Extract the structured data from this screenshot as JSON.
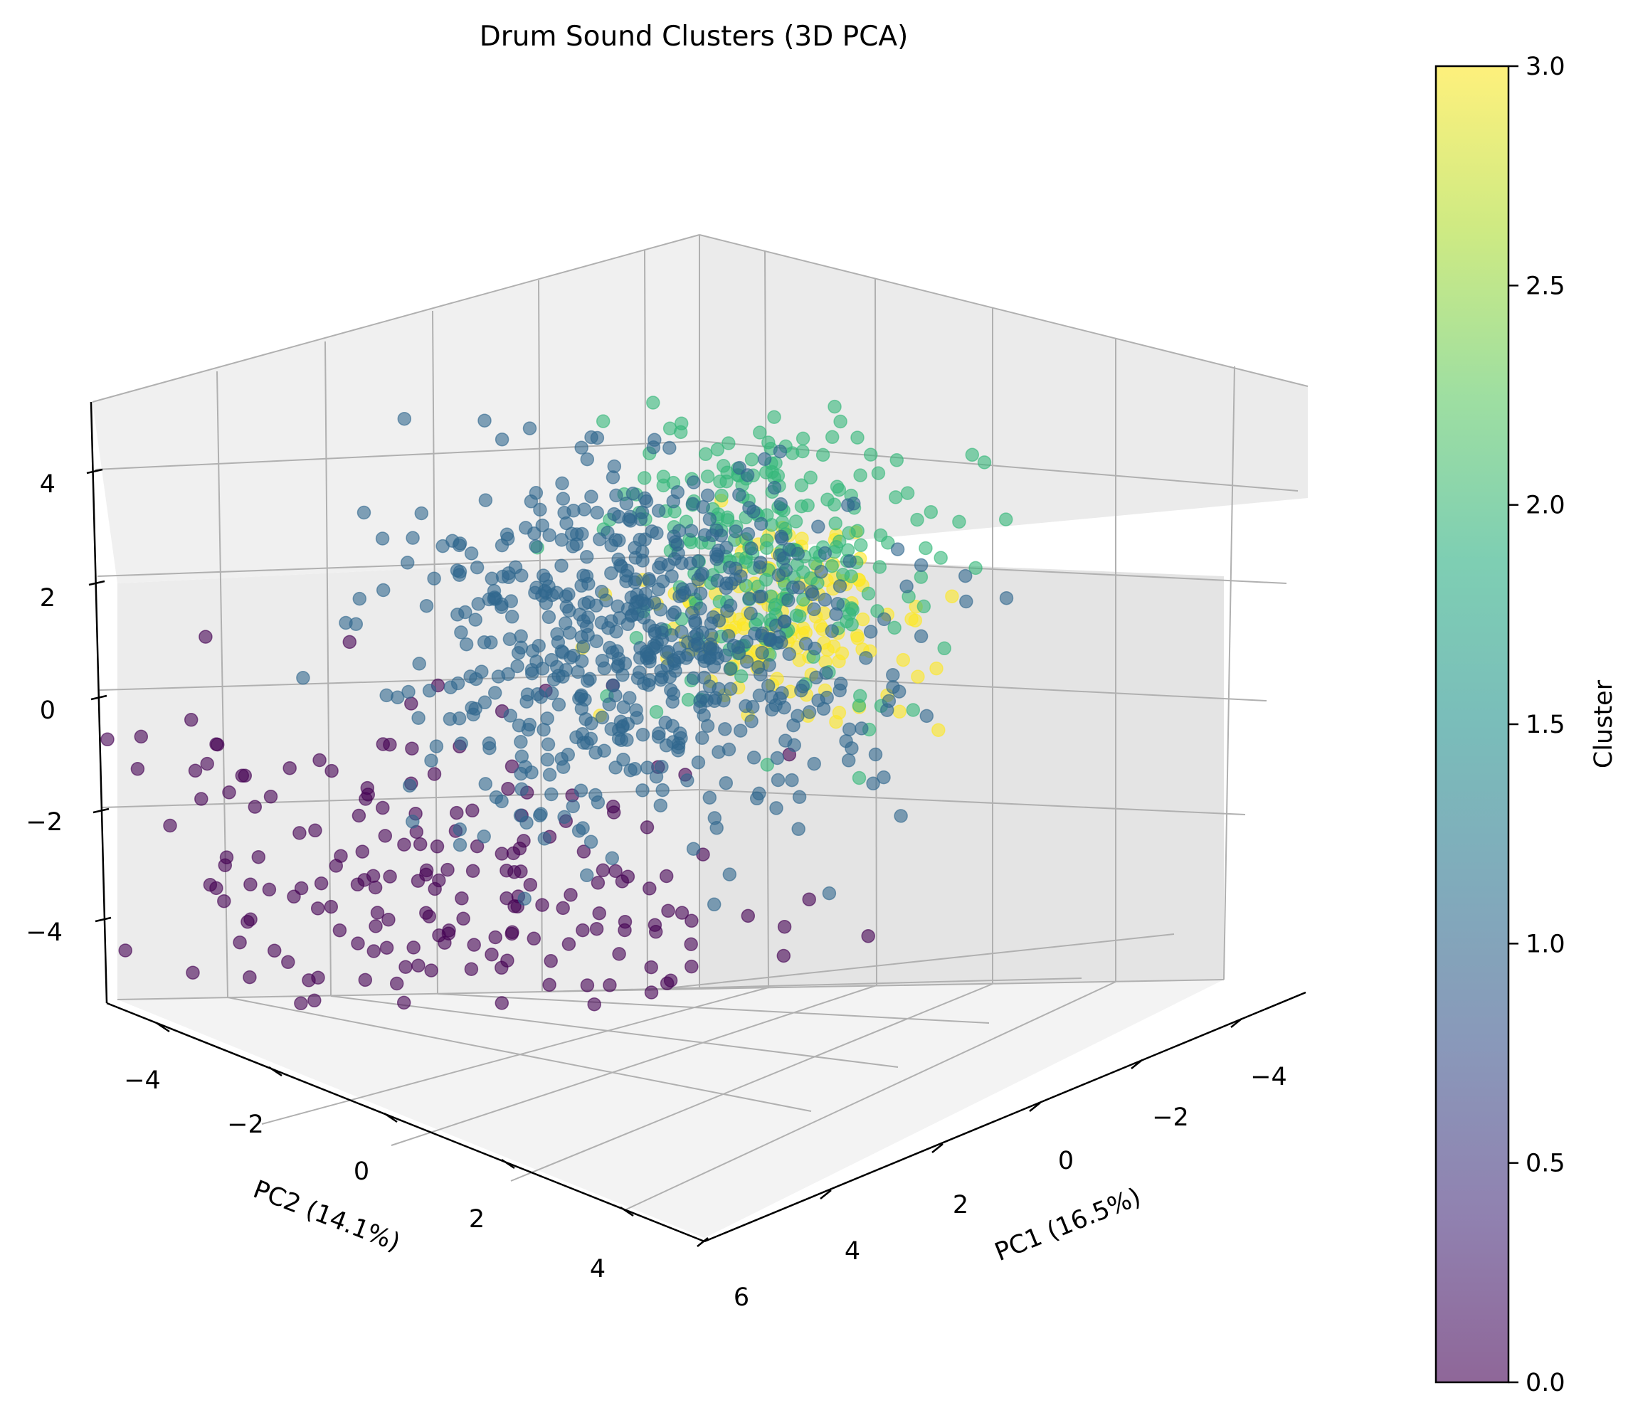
{
  "chart_data": {
    "type": "scatter",
    "projection": "3d",
    "title": "Drum Sound Clusters (3D PCA)",
    "xlabel": "PC1 (16.5%)",
    "ylabel": "PC2 (14.1%)",
    "zlabel": "",
    "xlim": [
      -5,
      7
    ],
    "ylim": [
      -5,
      5.5
    ],
    "zlim": [
      -5,
      5
    ],
    "xticks": [
      "−4",
      "−2",
      "0",
      "2",
      "4",
      "6"
    ],
    "yticks": [
      "−4",
      "−2",
      "0",
      "2",
      "4"
    ],
    "zticks": [
      "4",
      "2",
      "0",
      "−2",
      "−4"
    ],
    "grid": true,
    "colormap": "viridis",
    "alpha": 0.6,
    "colorbar": {
      "label": "Cluster",
      "range": [
        0.0,
        3.0
      ],
      "ticks": [
        "0.0",
        "0.5",
        "1.0",
        "1.5",
        "2.0",
        "2.5",
        "3.0"
      ]
    },
    "series": [
      {
        "cluster": 0,
        "color": "#440154",
        "approx_count": 600,
        "center": [
          4.0,
          0.5,
          -1.8
        ],
        "spread": [
          1.6,
          2.4,
          1.4
        ]
      },
      {
        "cluster": 1,
        "color": "#31688e",
        "approx_count": 1800,
        "center": [
          -0.5,
          1.5,
          0.6
        ],
        "spread": [
          1.5,
          1.4,
          1.4
        ]
      },
      {
        "cluster": 2,
        "color": "#35b779",
        "approx_count": 700,
        "center": [
          -3.0,
          1.5,
          1.2
        ],
        "spread": [
          0.9,
          1.1,
          1.1
        ]
      },
      {
        "cluster": 3,
        "color": "#fde725",
        "approx_count": 400,
        "center": [
          1.0,
          -2.3,
          2.8
        ],
        "spread": [
          0.9,
          0.8,
          0.7
        ]
      }
    ]
  }
}
